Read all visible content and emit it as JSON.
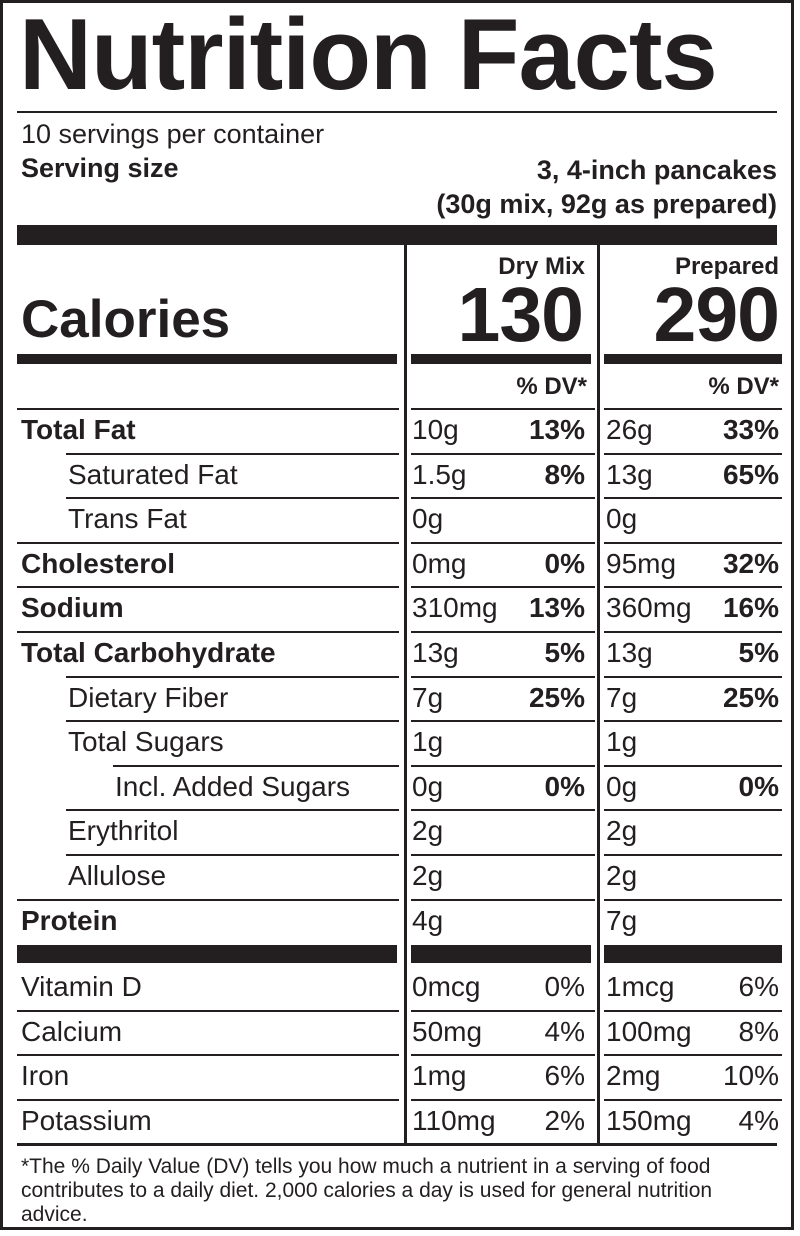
{
  "title": "Nutrition Facts",
  "servings_per_container": "10 servings per container",
  "serving_size_label": "Serving size",
  "serving_size_line1": "3, 4-inch pancakes",
  "serving_size_line2": "(30g mix, 92g as prepared)",
  "columns": {
    "dry": "Dry Mix",
    "prepared": "Prepared"
  },
  "calories": {
    "label": "Calories",
    "dry": "130",
    "prepared": "290"
  },
  "dv_header": "% DV*",
  "nutrients": [
    {
      "name": "Total Fat",
      "bold": true,
      "indent": 0,
      "dry_amt": "10g",
      "dry_dv": "13%",
      "prep_amt": "26g",
      "prep_dv": "33%"
    },
    {
      "name": "Saturated Fat",
      "bold": false,
      "indent": 1,
      "dry_amt": "1.5g",
      "dry_dv": "8%",
      "prep_amt": "13g",
      "prep_dv": "65%"
    },
    {
      "name": "Trans Fat",
      "bold": false,
      "indent": 1,
      "dry_amt": "0g",
      "dry_dv": "",
      "prep_amt": "0g",
      "prep_dv": ""
    },
    {
      "name": "Cholesterol",
      "bold": true,
      "indent": 0,
      "dry_amt": "0mg",
      "dry_dv": "0%",
      "prep_amt": "95mg",
      "prep_dv": "32%"
    },
    {
      "name": "Sodium",
      "bold": true,
      "indent": 0,
      "dry_amt": "310mg",
      "dry_dv": "13%",
      "prep_amt": "360mg",
      "prep_dv": "16%"
    },
    {
      "name": "Total Carbohydrate",
      "bold": true,
      "indent": 0,
      "dry_amt": "13g",
      "dry_dv": "5%",
      "prep_amt": "13g",
      "prep_dv": "5%"
    },
    {
      "name": "Dietary Fiber",
      "bold": false,
      "indent": 1,
      "dry_amt": "7g",
      "dry_dv": "25%",
      "prep_amt": "7g",
      "prep_dv": "25%"
    },
    {
      "name": "Total Sugars",
      "bold": false,
      "indent": 1,
      "dry_amt": "1g",
      "dry_dv": "",
      "prep_amt": "1g",
      "prep_dv": ""
    },
    {
      "name": "Incl. Added Sugars",
      "bold": false,
      "indent": 2,
      "dry_amt": "0g",
      "dry_dv": "0%",
      "prep_amt": "0g",
      "prep_dv": "0%"
    },
    {
      "name": "Erythritol",
      "bold": false,
      "indent": 1,
      "dry_amt": "2g",
      "dry_dv": "",
      "prep_amt": "2g",
      "prep_dv": ""
    },
    {
      "name": "Allulose",
      "bold": false,
      "indent": 1,
      "dry_amt": "2g",
      "dry_dv": "",
      "prep_amt": "2g",
      "prep_dv": ""
    },
    {
      "name": "Protein",
      "bold": true,
      "indent": 0,
      "dry_amt": "4g",
      "dry_dv": "",
      "prep_amt": "7g",
      "prep_dv": ""
    }
  ],
  "vitamins": [
    {
      "name": "Vitamin D",
      "dry_amt": "0mcg",
      "dry_dv": "0%",
      "prep_amt": "1mcg",
      "prep_dv": "6%"
    },
    {
      "name": "Calcium",
      "dry_amt": "50mg",
      "dry_dv": "4%",
      "prep_amt": "100mg",
      "prep_dv": "8%"
    },
    {
      "name": "Iron",
      "dry_amt": "1mg",
      "dry_dv": "6%",
      "prep_amt": "2mg",
      "prep_dv": "10%"
    },
    {
      "name": "Potassium",
      "dry_amt": "110mg",
      "dry_dv": "2%",
      "prep_amt": "150mg",
      "prep_dv": "4%"
    }
  ],
  "footnote": "*The % Daily Value (DV) tells you how much a nutrient in a serving of food contributes to a daily diet. 2,000 calories a day is used for general nutrition advice."
}
